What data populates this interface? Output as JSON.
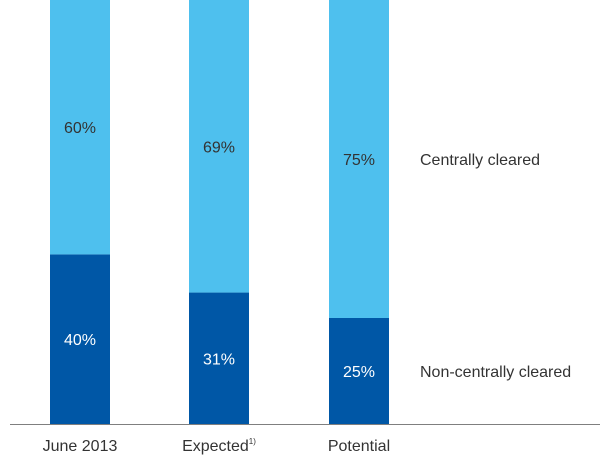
{
  "chart_data": {
    "type": "bar",
    "stacked": true,
    "normalized": true,
    "categories": [
      "June 2013",
      "Expected",
      "Potential"
    ],
    "category_footnotes": [
      "",
      "1)",
      ""
    ],
    "series": [
      {
        "name": "Non-centrally cleared",
        "values": [
          40,
          31,
          25
        ],
        "labels": [
          "40%",
          "31%",
          "25%"
        ],
        "color": "#0057a6",
        "label_color": "#ffffff"
      },
      {
        "name": "Centrally cleared",
        "values": [
          60,
          69,
          75
        ],
        "labels": [
          "60%",
          "69%",
          "75%"
        ],
        "color": "#4ec0ee",
        "label_color": "#333333"
      }
    ],
    "ylim": [
      0,
      100
    ],
    "grid": false,
    "legend": "right"
  }
}
